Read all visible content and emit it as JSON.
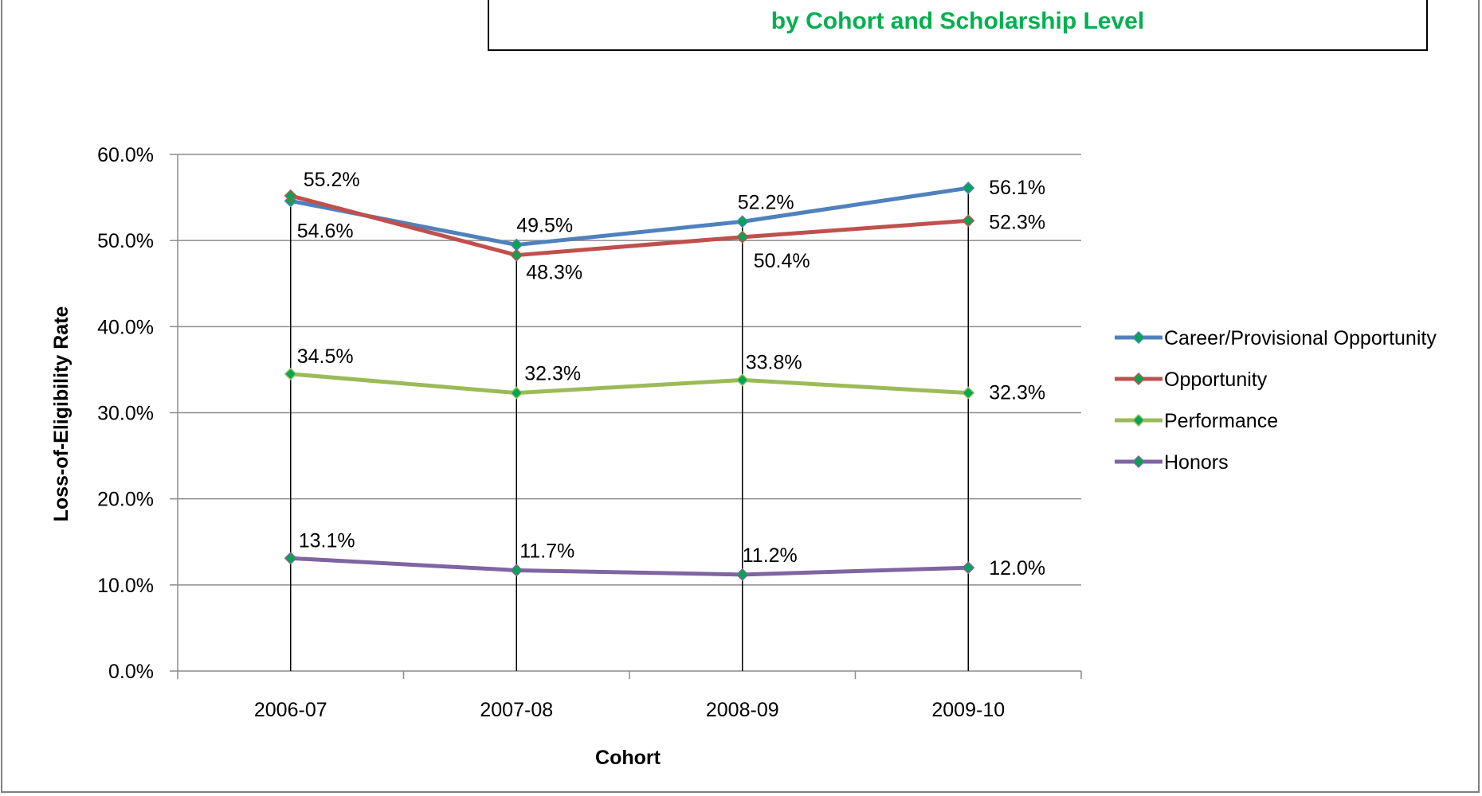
{
  "chart_data": {
    "type": "line",
    "title": "by Cohort and Scholarship Level",
    "xlabel": "Cohort",
    "ylabel": "Loss-of-Eligibility Rate",
    "categories": [
      "2006-07",
      "2007-08",
      "2008-09",
      "2009-10"
    ],
    "ylim": [
      0,
      60
    ],
    "yticks": [
      "0.0%",
      "10.0%",
      "20.0%",
      "30.0%",
      "40.0%",
      "50.0%",
      "60.0%"
    ],
    "ytick_values": [
      0,
      10,
      20,
      30,
      40,
      50,
      60
    ],
    "grid": true,
    "drop_lines": true,
    "legend_position": "right",
    "marker_color": "#00a651",
    "series": [
      {
        "name": "Career/Provisional Opportunity",
        "color": "#4f81bd",
        "values": [
          54.6,
          49.5,
          52.2,
          56.1
        ],
        "labels": [
          "54.6%",
          "49.5%",
          "52.2%",
          "56.1%"
        ]
      },
      {
        "name": "Opportunity",
        "color": "#c0504d",
        "values": [
          55.2,
          48.3,
          50.4,
          52.3
        ],
        "labels": [
          "55.2%",
          "48.3%",
          "50.4%",
          "52.3%"
        ]
      },
      {
        "name": "Performance",
        "color": "#9bbb59",
        "values": [
          34.5,
          32.3,
          33.8,
          32.3
        ],
        "labels": [
          "34.5%",
          "32.3%",
          "33.8%",
          "32.3%"
        ]
      },
      {
        "name": "Honors",
        "color": "#8064a2",
        "values": [
          13.1,
          11.7,
          11.2,
          12.0
        ],
        "labels": [
          "13.1%",
          "11.7%",
          "11.2%",
          "12.0%"
        ]
      }
    ]
  }
}
